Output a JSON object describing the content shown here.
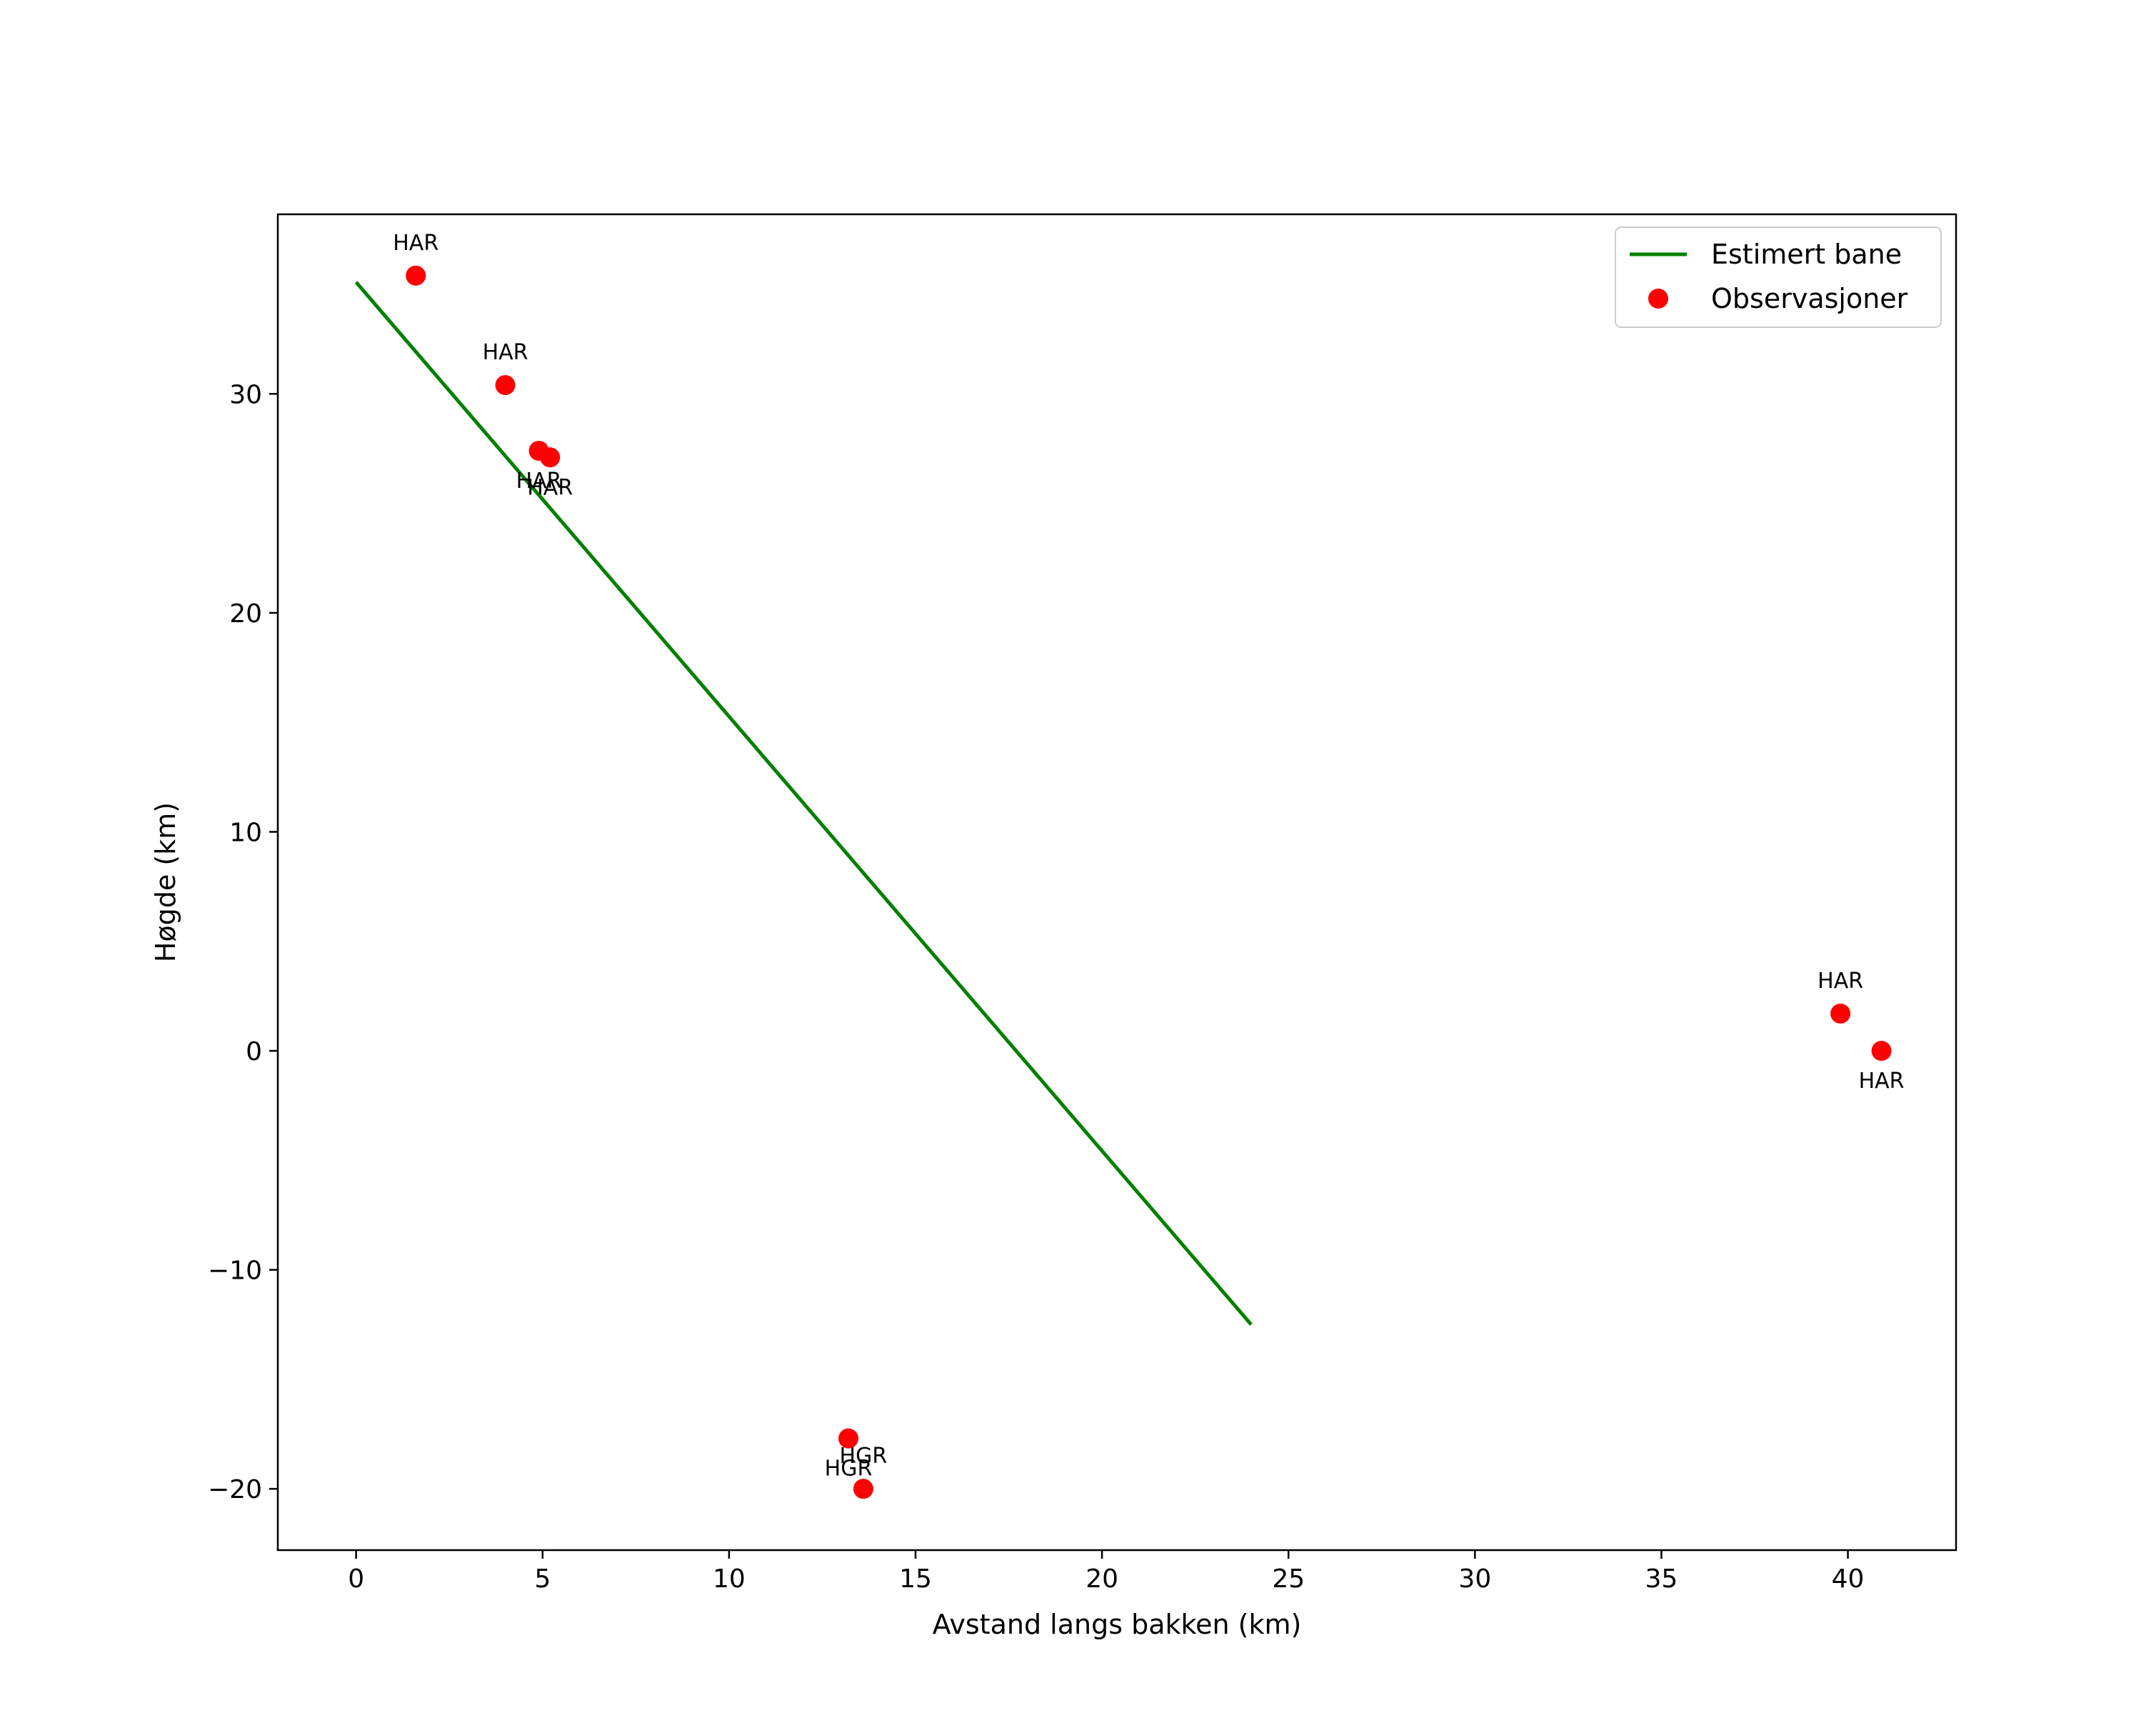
{
  "chart_data": {
    "type": "scatter",
    "title": "",
    "xlabel": "Avstand langs bakken (km)",
    "ylabel": "Høgde (km)",
    "xlim": [
      -2.1,
      42.9
    ],
    "ylim": [
      -22.8,
      38.2
    ],
    "xticks": [
      0,
      5,
      10,
      15,
      20,
      25,
      30,
      35,
      40
    ],
    "yticks": [
      -20,
      -10,
      0,
      10,
      20,
      30
    ],
    "xtick_labels": [
      "0",
      "5",
      "10",
      "15",
      "20",
      "25",
      "30",
      "35",
      "40"
    ],
    "ytick_labels": [
      "−20",
      "−10",
      "0",
      "10",
      "20",
      "30"
    ],
    "grid": false,
    "legend_position": "top-right",
    "series": [
      {
        "name": "Estimert bane",
        "kind": "line",
        "color": "#008000",
        "points": [
          [
            0.0,
            35.1
          ],
          [
            24.0,
            -12.5
          ]
        ]
      },
      {
        "name": "Observasjoner",
        "kind": "scatter",
        "color": "#ff0000",
        "points": [
          {
            "x": 1.6,
            "y": 35.4,
            "label": "HAR",
            "label_side": "above"
          },
          {
            "x": 4.0,
            "y": 30.4,
            "label": "HAR",
            "label_side": "above"
          },
          {
            "x": 4.9,
            "y": 27.4,
            "label": "HAR",
            "label_side": "below"
          },
          {
            "x": 5.2,
            "y": 27.1,
            "label": "HAR",
            "label_side": "below"
          },
          {
            "x": 13.2,
            "y": -17.7,
            "label": "HGR",
            "label_side": "below"
          },
          {
            "x": 13.6,
            "y": -20.0,
            "label": "HGR",
            "label_side": "above"
          },
          {
            "x": 39.8,
            "y": 1.7,
            "label": "HAR",
            "label_side": "above"
          },
          {
            "x": 40.9,
            "y": 0.0,
            "label": "HAR",
            "label_side": "below"
          }
        ]
      }
    ]
  }
}
